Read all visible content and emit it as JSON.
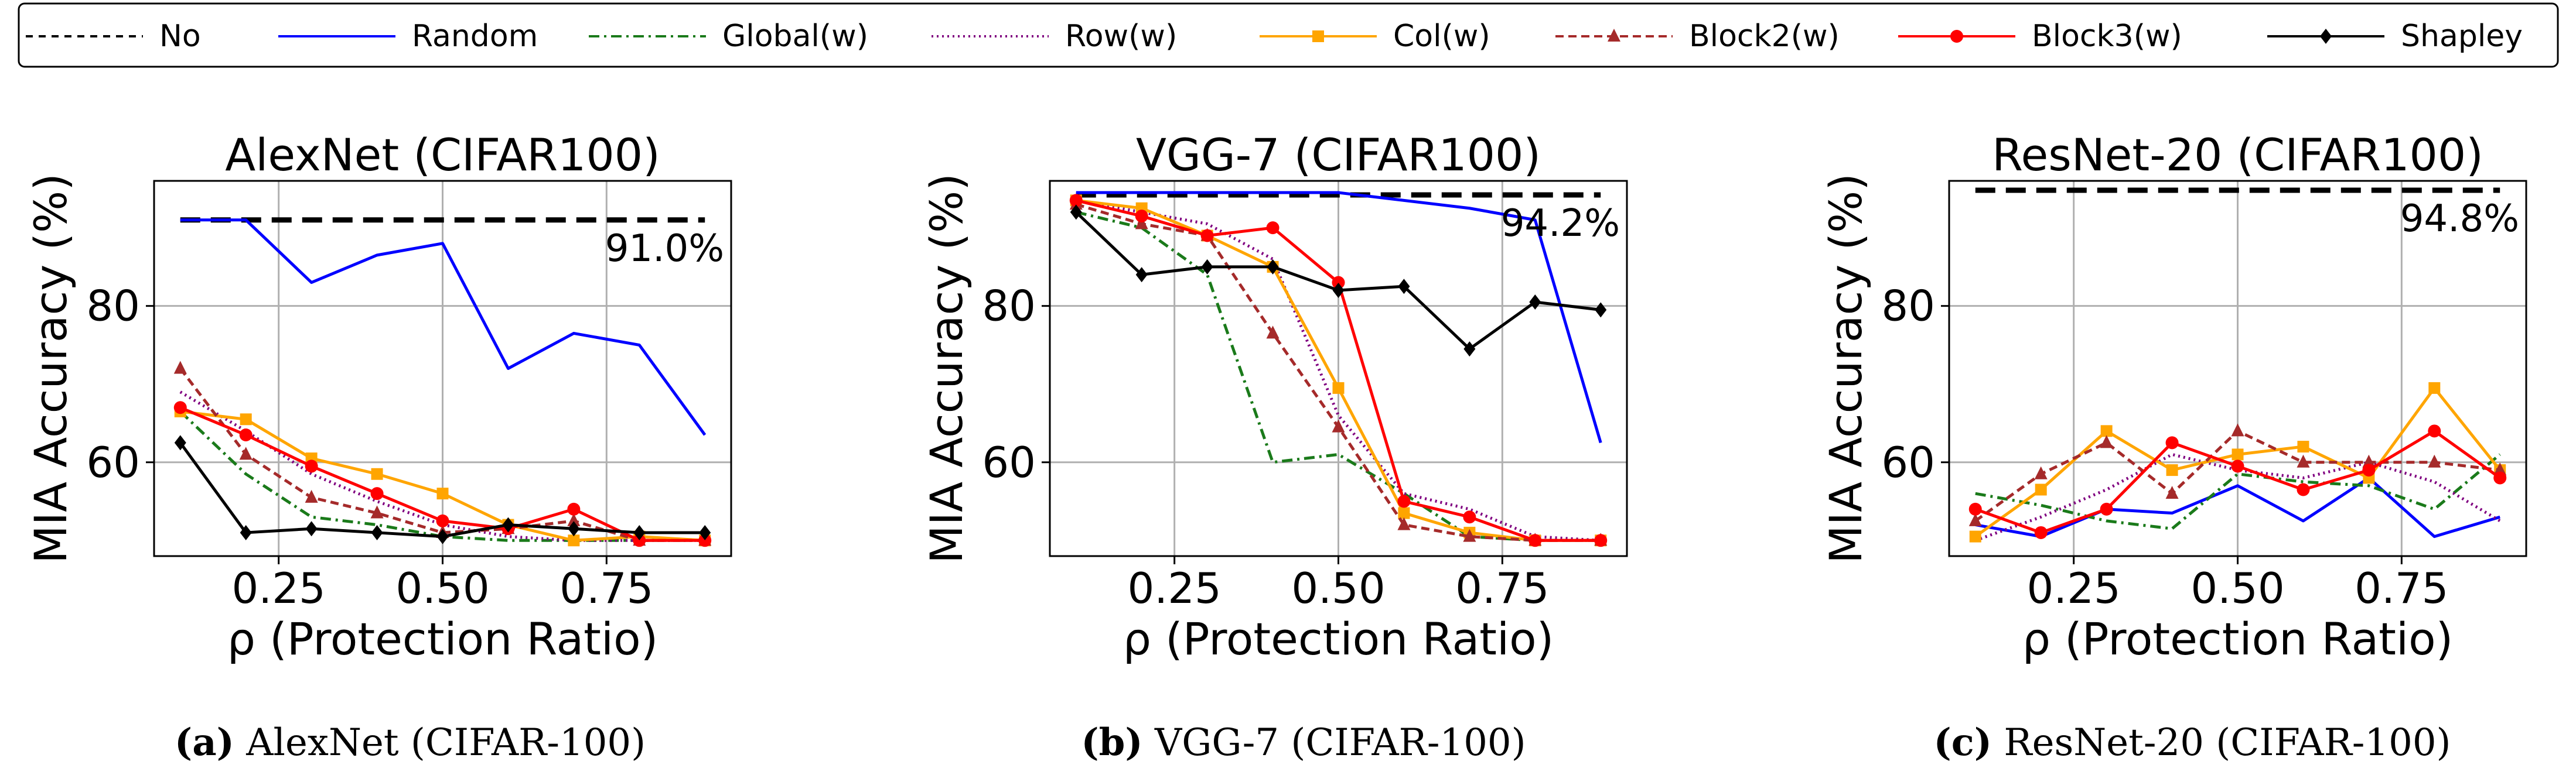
{
  "legend": {
    "entries": [
      {
        "label": "No",
        "color": "#000000",
        "dash": "12,10",
        "marker": "none"
      },
      {
        "label": "Random",
        "color": "#0000ff",
        "dash": "",
        "marker": "none"
      },
      {
        "label": "Global(w)",
        "color": "#1a7a1a",
        "dash": "18,8,4,8",
        "marker": "none"
      },
      {
        "label": "Row(w)",
        "color": "#800080",
        "dash": "3,6",
        "marker": "none"
      },
      {
        "label": "Col(w)",
        "color": "#ffa500",
        "dash": "",
        "marker": "square"
      },
      {
        "label": "Block2(w)",
        "color": "#a52a2a",
        "dash": "14,8",
        "marker": "triangle"
      },
      {
        "label": "Block3(w)",
        "color": "#ff0000",
        "dash": "",
        "marker": "circle"
      },
      {
        "label": "Shapley",
        "color": "#000000",
        "dash": "",
        "marker": "diamond"
      }
    ]
  },
  "chart_data": [
    {
      "type": "line",
      "title": "AlexNet (CIFAR100)",
      "xlabel": "ρ (Protection Ratio)",
      "ylabel": "MIA Accuracy (%)",
      "xlim": [
        0.06,
        0.94
      ],
      "ylim": [
        48,
        96
      ],
      "xticks": [
        0.25,
        0.5,
        0.75
      ],
      "xtick_labels": [
        "0.25",
        "0.50",
        "0.75"
      ],
      "yticks": [
        60,
        80
      ],
      "ytick_labels": [
        "60",
        "80"
      ],
      "grid": true,
      "baseline": {
        "value": 91.0,
        "label": "91.0%"
      },
      "x": [
        0.1,
        0.2,
        0.3,
        0.4,
        0.5,
        0.6,
        0.7,
        0.8,
        0.9
      ],
      "series": [
        {
          "name": "Random",
          "values": [
            91.0,
            91.0,
            83.0,
            86.5,
            88.0,
            72.0,
            76.5,
            75.0,
            63.5
          ]
        },
        {
          "name": "Global(w)",
          "values": [
            66.5,
            58.5,
            53.0,
            52.0,
            50.5,
            50.0,
            50.0,
            50.0,
            50.0
          ]
        },
        {
          "name": "Row(w)",
          "values": [
            69.0,
            64.0,
            58.5,
            55.0,
            52.0,
            50.5,
            50.0,
            50.0,
            50.0
          ]
        },
        {
          "name": "Col(w)",
          "values": [
            66.5,
            65.5,
            60.5,
            58.5,
            56.0,
            52.0,
            50.0,
            50.5,
            50.0
          ]
        },
        {
          "name": "Block2(w)",
          "values": [
            72.0,
            61.0,
            55.5,
            53.5,
            51.0,
            51.5,
            52.5,
            50.0,
            50.0
          ]
        },
        {
          "name": "Block3(w)",
          "values": [
            67.0,
            63.5,
            59.5,
            56.0,
            52.5,
            51.5,
            54.0,
            50.0,
            50.0
          ]
        },
        {
          "name": "Shapley",
          "values": [
            62.5,
            51.0,
            51.5,
            51.0,
            50.5,
            52.0,
            51.5,
            51.0,
            51.0
          ]
        }
      ],
      "caption": {
        "label": "(a)",
        "text": " AlexNet (CIFAR-100)"
      }
    },
    {
      "type": "line",
      "title": "VGG-7 (CIFAR100)",
      "xlabel": "ρ (Protection Ratio)",
      "ylabel": "MIA Accuracy (%)",
      "xlim": [
        0.06,
        0.94
      ],
      "ylim": [
        48,
        96
      ],
      "xticks": [
        0.25,
        0.5,
        0.75
      ],
      "xtick_labels": [
        "0.25",
        "0.50",
        "0.75"
      ],
      "yticks": [
        60,
        80
      ],
      "ytick_labels": [
        "60",
        "80"
      ],
      "grid": true,
      "baseline": {
        "value": 94.2,
        "label": "94.2%"
      },
      "x": [
        0.1,
        0.2,
        0.3,
        0.4,
        0.5,
        0.6,
        0.7,
        0.8,
        0.9
      ],
      "series": [
        {
          "name": "Random",
          "values": [
            94.5,
            94.5,
            94.5,
            94.5,
            94.5,
            93.5,
            92.5,
            91.0,
            62.5
          ]
        },
        {
          "name": "Global(w)",
          "values": [
            92.0,
            90.0,
            84.0,
            60.0,
            61.0,
            56.0,
            50.5,
            50.0,
            50.0
          ]
        },
        {
          "name": "Row(w)",
          "values": [
            93.5,
            92.0,
            90.5,
            86.0,
            66.0,
            56.0,
            54.0,
            50.5,
            50.0
          ]
        },
        {
          "name": "Col(w)",
          "values": [
            93.5,
            92.5,
            89.0,
            85.0,
            69.5,
            53.5,
            51.0,
            50.0,
            50.0
          ]
        },
        {
          "name": "Block2(w)",
          "values": [
            93.0,
            90.5,
            89.0,
            76.5,
            64.5,
            52.0,
            50.5,
            50.0,
            50.0
          ]
        },
        {
          "name": "Block3(w)",
          "values": [
            93.5,
            91.5,
            89.0,
            90.0,
            83.0,
            55.0,
            53.0,
            50.0,
            50.0
          ]
        },
        {
          "name": "Shapley",
          "values": [
            92.0,
            84.0,
            85.0,
            85.0,
            82.0,
            82.5,
            74.5,
            80.5,
            79.5
          ]
        }
      ],
      "caption": {
        "label": "(b)",
        "text": " VGG-7 (CIFAR-100)"
      }
    },
    {
      "type": "line",
      "title": "ResNet-20 (CIFAR100)",
      "xlabel": "ρ (Protection Ratio)",
      "ylabel": "MIA Accuracy (%)",
      "xlim": [
        0.06,
        0.94
      ],
      "ylim": [
        48,
        96
      ],
      "xticks": [
        0.25,
        0.5,
        0.75
      ],
      "xtick_labels": [
        "0.25",
        "0.50",
        "0.75"
      ],
      "yticks": [
        60,
        80
      ],
      "ytick_labels": [
        "60",
        "80"
      ],
      "grid": true,
      "baseline": {
        "value": 94.8,
        "label": "94.8%"
      },
      "x": [
        0.1,
        0.2,
        0.3,
        0.4,
        0.5,
        0.6,
        0.7,
        0.8,
        0.9
      ],
      "series": [
        {
          "name": "Random",
          "values": [
            52.0,
            50.5,
            54.0,
            53.5,
            57.0,
            52.5,
            58.0,
            50.5,
            53.0
          ]
        },
        {
          "name": "Global(w)",
          "values": [
            56.0,
            54.5,
            52.5,
            51.5,
            58.5,
            57.5,
            57.0,
            54.0,
            61.0
          ]
        },
        {
          "name": "Row(w)",
          "values": [
            50.0,
            53.0,
            56.5,
            61.0,
            59.0,
            58.0,
            60.0,
            57.5,
            52.5
          ]
        },
        {
          "name": "Col(w)",
          "values": [
            50.5,
            56.5,
            64.0,
            59.0,
            61.0,
            62.0,
            58.0,
            69.5,
            59.0
          ]
        },
        {
          "name": "Block2(w)",
          "values": [
            52.5,
            58.5,
            62.5,
            56.0,
            64.0,
            60.0,
            60.0,
            60.0,
            59.0
          ]
        },
        {
          "name": "Block3(w)",
          "values": [
            54.0,
            51.0,
            54.0,
            62.5,
            59.5,
            56.5,
            59.0,
            64.0,
            58.0
          ]
        }
      ],
      "caption": {
        "label": "(c)",
        "text": " ResNet-20 (CIFAR-100)"
      }
    }
  ]
}
